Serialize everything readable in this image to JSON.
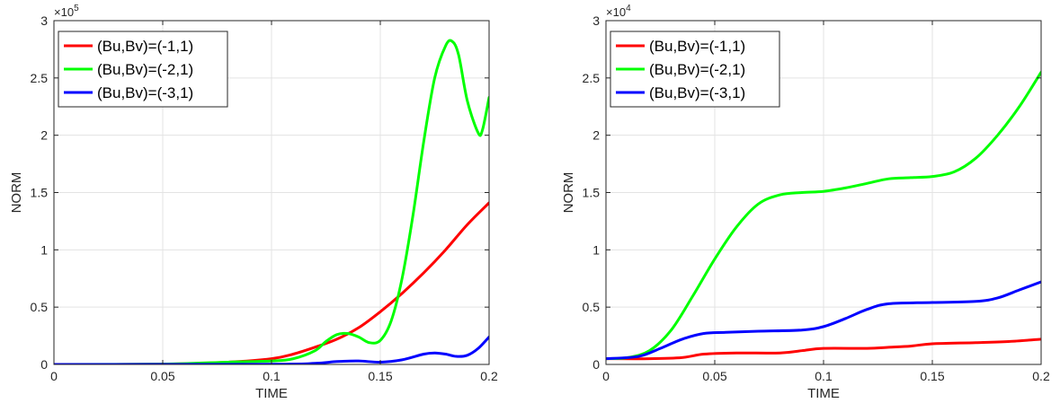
{
  "chart_data": [
    {
      "type": "line",
      "xlabel": "TIME",
      "ylabel": "NORM",
      "xlim": [
        0,
        0.2
      ],
      "ylim": [
        0,
        3
      ],
      "y_multiplier": "×10",
      "y_exponent": "5",
      "xticks": [
        "0",
        "0.05",
        "0.1",
        "0.15",
        "0.2"
      ],
      "yticks": [
        "0",
        "0.5",
        "1",
        "1.5",
        "2",
        "2.5",
        "3"
      ],
      "grid": true,
      "legend_position": "top-left",
      "series": [
        {
          "name": "(Bu,Bv)=(-1,1)",
          "color": "#ff0000",
          "x": [
            0,
            0.05,
            0.08,
            0.1,
            0.11,
            0.12,
            0.13,
            0.14,
            0.15,
            0.16,
            0.17,
            0.18,
            0.19,
            0.2
          ],
          "y": [
            0,
            0.002,
            0.02,
            0.05,
            0.09,
            0.15,
            0.22,
            0.32,
            0.46,
            0.62,
            0.8,
            1.0,
            1.22,
            1.41
          ]
        },
        {
          "name": "(Bu,Bv)=(-2,1)",
          "color": "#00ff00",
          "x": [
            0,
            0.05,
            0.08,
            0.1,
            0.11,
            0.12,
            0.125,
            0.13,
            0.135,
            0.14,
            0.145,
            0.15,
            0.155,
            0.16,
            0.165,
            0.17,
            0.175,
            0.18,
            0.183,
            0.186,
            0.19,
            0.195,
            0.197,
            0.2
          ],
          "y": [
            0,
            0.003,
            0.02,
            0.03,
            0.05,
            0.12,
            0.2,
            0.26,
            0.27,
            0.24,
            0.19,
            0.21,
            0.38,
            0.75,
            1.3,
            1.95,
            2.5,
            2.78,
            2.82,
            2.7,
            2.3,
            2.02,
            2.05,
            2.33
          ]
        },
        {
          "name": "(Bu,Bv)=(-3,1)",
          "color": "#0000ff",
          "x": [
            0,
            0.1,
            0.12,
            0.13,
            0.14,
            0.15,
            0.16,
            0.17,
            0.175,
            0.18,
            0.185,
            0.19,
            0.195,
            0.2
          ],
          "y": [
            0,
            0.002,
            0.01,
            0.025,
            0.03,
            0.02,
            0.04,
            0.09,
            0.1,
            0.09,
            0.07,
            0.08,
            0.14,
            0.24
          ]
        }
      ]
    },
    {
      "type": "line",
      "xlabel": "TIME",
      "ylabel": "NORM",
      "xlim": [
        0,
        0.2
      ],
      "ylim": [
        0,
        3
      ],
      "y_multiplier": "×10",
      "y_exponent": "4",
      "xticks": [
        "0",
        "0.05",
        "0.1",
        "0.15",
        "0.2"
      ],
      "yticks": [
        "0",
        "0.5",
        "1",
        "1.5",
        "2",
        "2.5",
        "3"
      ],
      "grid": true,
      "legend_position": "top-left",
      "series": [
        {
          "name": "(Bu,Bv)=(-1,1)",
          "color": "#ff0000",
          "x": [
            0,
            0.02,
            0.035,
            0.045,
            0.06,
            0.08,
            0.09,
            0.1,
            0.12,
            0.13,
            0.14,
            0.15,
            0.17,
            0.185,
            0.2
          ],
          "y": [
            0.05,
            0.05,
            0.06,
            0.09,
            0.1,
            0.1,
            0.12,
            0.14,
            0.14,
            0.15,
            0.16,
            0.18,
            0.19,
            0.2,
            0.22
          ]
        },
        {
          "name": "(Bu,Bv)=(-2,1)",
          "color": "#00ff00",
          "x": [
            0,
            0.01,
            0.02,
            0.03,
            0.04,
            0.05,
            0.06,
            0.07,
            0.08,
            0.09,
            0.1,
            0.11,
            0.12,
            0.13,
            0.14,
            0.15,
            0.16,
            0.17,
            0.18,
            0.19,
            0.2
          ],
          "y": [
            0.05,
            0.06,
            0.12,
            0.3,
            0.6,
            0.92,
            1.2,
            1.4,
            1.48,
            1.5,
            1.51,
            1.54,
            1.58,
            1.62,
            1.63,
            1.64,
            1.68,
            1.8,
            2.0,
            2.25,
            2.55
          ]
        },
        {
          "name": "(Bu,Bv)=(-3,1)",
          "color": "#0000ff",
          "x": [
            0,
            0.015,
            0.025,
            0.035,
            0.045,
            0.055,
            0.07,
            0.09,
            0.1,
            0.11,
            0.12,
            0.13,
            0.15,
            0.17,
            0.18,
            0.19,
            0.2
          ],
          "y": [
            0.05,
            0.07,
            0.14,
            0.22,
            0.27,
            0.28,
            0.29,
            0.3,
            0.33,
            0.4,
            0.48,
            0.53,
            0.54,
            0.55,
            0.58,
            0.65,
            0.72
          ]
        }
      ]
    }
  ]
}
